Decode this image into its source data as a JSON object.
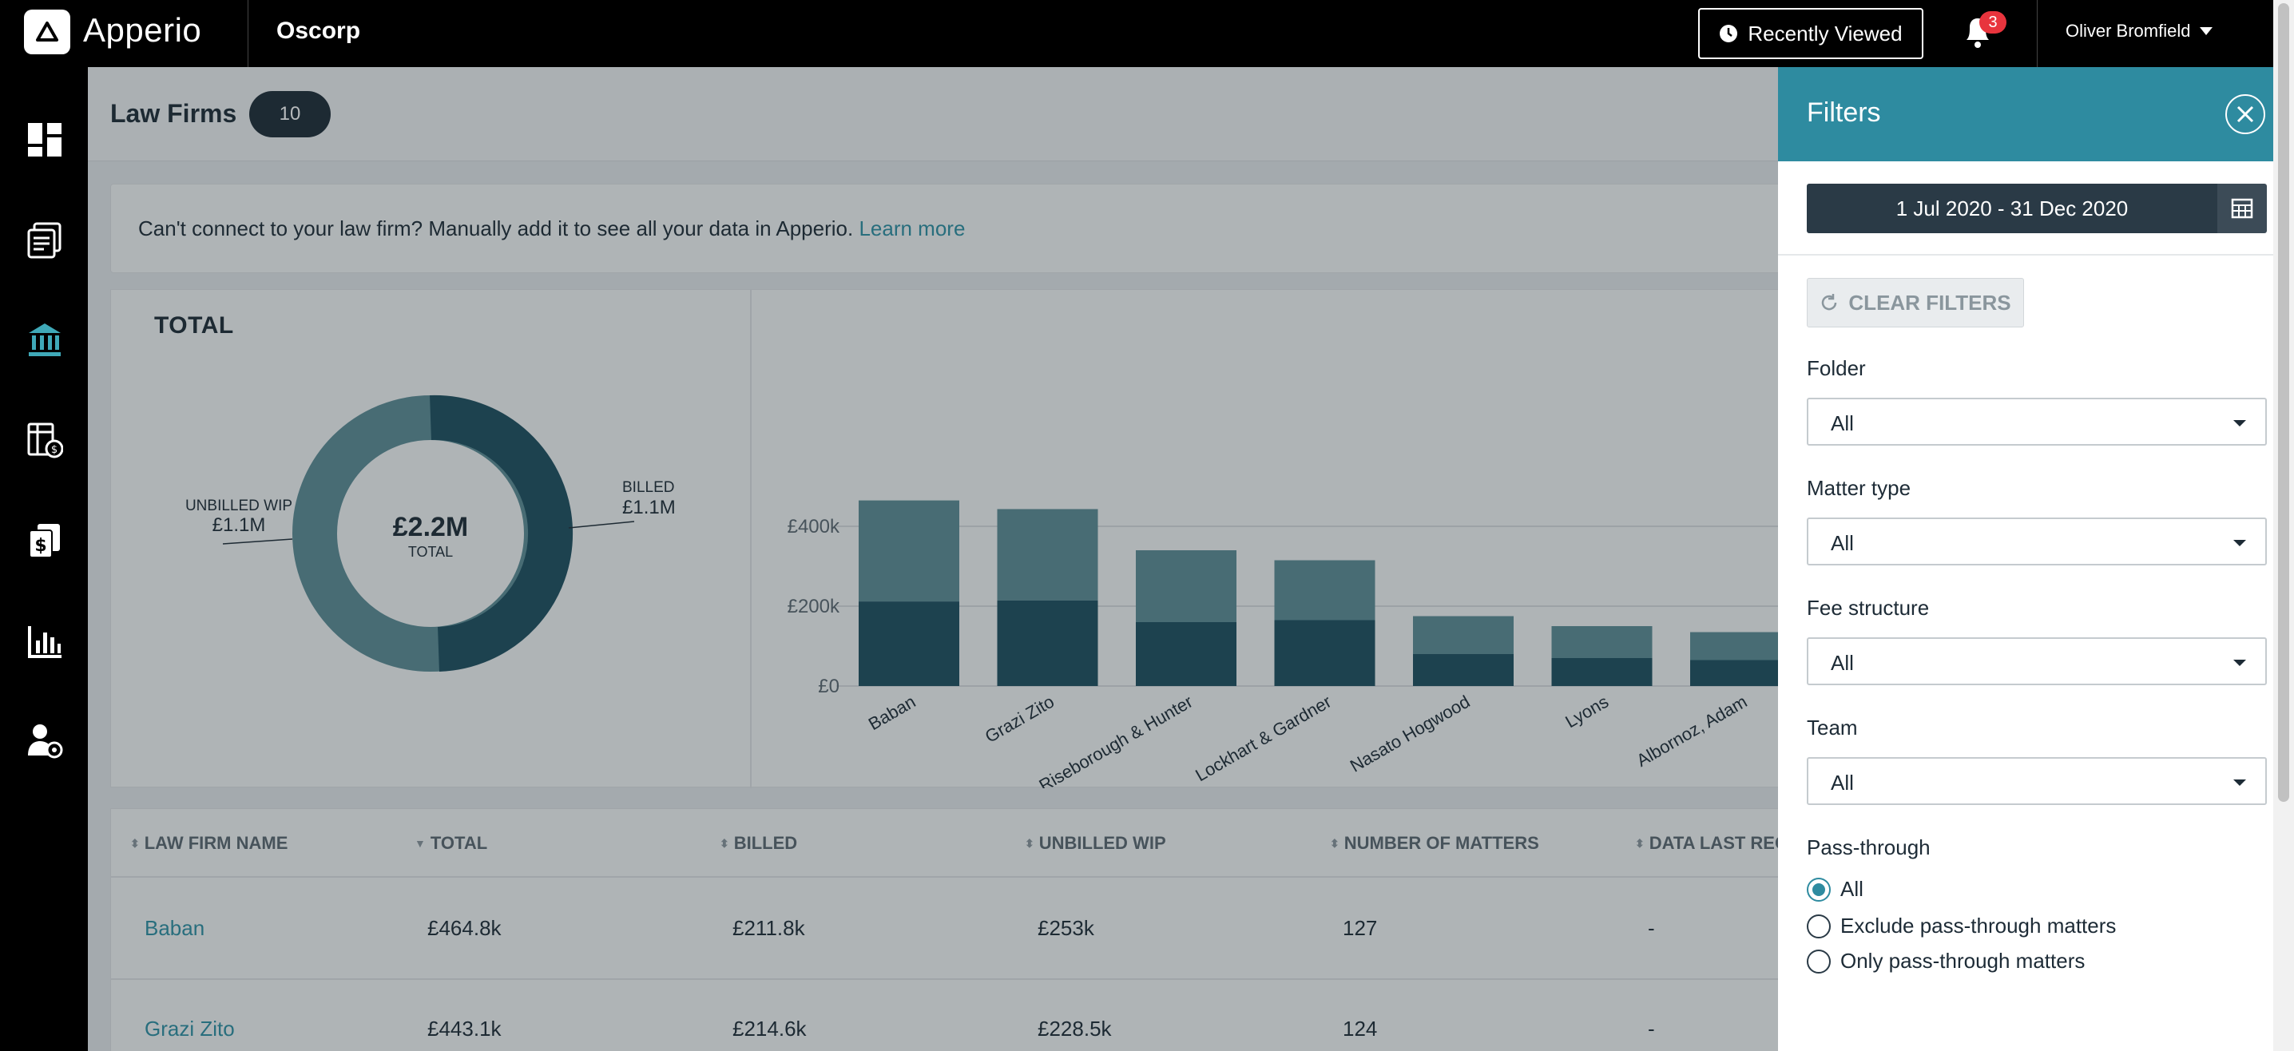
{
  "topbar": {
    "app_name": "Apperio",
    "company": "Oscorp",
    "recent_label": "Recently Viewed",
    "notifications": "3",
    "user_name": "Oliver Bromfield"
  },
  "sidebar": {
    "icons": [
      "dashboard-icon",
      "documents-icon",
      "bank-icon",
      "billing-icon",
      "invoice-icon",
      "reports-icon",
      "user-settings-icon"
    ]
  },
  "page": {
    "title": "Law Firms",
    "count": "10"
  },
  "banner": {
    "text": "Can't connect to your law firm? Manually add it to see all your data in Apperio. ",
    "link": "Learn more"
  },
  "donut": {
    "title": "TOTAL",
    "center_value": "£2.2M",
    "center_label": "TOTAL",
    "billed_label": "BILLED",
    "billed_value": "£1.1M",
    "unbilled_label": "UNBILLED WIP",
    "unbilled_value": "£1.1M"
  },
  "chart_data": {
    "type": "bar",
    "stacked": true,
    "categories": [
      "Baban",
      "Grazi Zito",
      "Riseborough & Hunter",
      "Lockhart & Gardner",
      "Nasato Hogwood",
      "Lyons",
      "Albornoz, Adam"
    ],
    "series": [
      {
        "values": [
          211.8,
          214.6,
          160,
          165,
          80,
          70,
          65
        ]
      },
      {
        "values": [
          253,
          228.5,
          180,
          150,
          95,
          80,
          70
        ]
      }
    ],
    "y_ticks": [
      "£0",
      "£200k",
      "£400k"
    ],
    "ylim": [
      0,
      450
    ],
    "colors": [
      "#1d4e5f",
      "#5c8d96"
    ]
  },
  "table": {
    "headers": [
      "LAW FIRM NAME",
      "TOTAL",
      "BILLED",
      "UNBILLED WIP",
      "NUMBER OF MATTERS",
      "DATA LAST RECE"
    ],
    "rows": [
      [
        "Baban",
        "£464.8k",
        "£211.8k",
        "£253k",
        "127",
        "-"
      ],
      [
        "Grazi Zito",
        "£443.1k",
        "£214.6k",
        "£228.5k",
        "124",
        "-"
      ]
    ]
  },
  "filters": {
    "title": "Filters",
    "date_range": "1 Jul 2020 - 31 Dec 2020",
    "clear_label": "CLEAR FILTERS",
    "folder_label": "Folder",
    "folder_value": "All",
    "matter_type_label": "Matter type",
    "matter_type_value": "All",
    "fee_label": "Fee structure",
    "fee_value": "All",
    "team_label": "Team",
    "team_value": "All",
    "pass_label": "Pass-through",
    "pass_options": [
      "All",
      "Exclude pass-through matters",
      "Only pass-through matters"
    ]
  }
}
